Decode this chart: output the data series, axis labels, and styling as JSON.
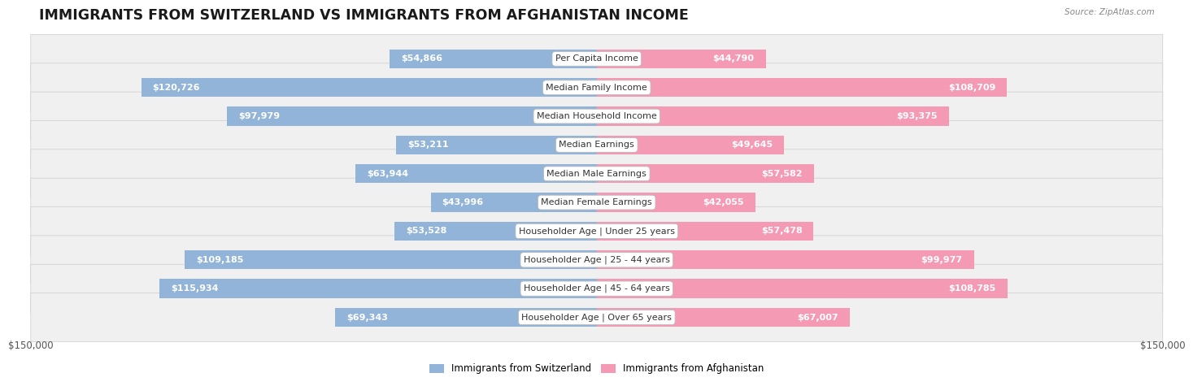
{
  "title": "IMMIGRANTS FROM SWITZERLAND VS IMMIGRANTS FROM AFGHANISTAN INCOME",
  "source": "Source: ZipAtlas.com",
  "categories": [
    "Per Capita Income",
    "Median Family Income",
    "Median Household Income",
    "Median Earnings",
    "Median Male Earnings",
    "Median Female Earnings",
    "Householder Age | Under 25 years",
    "Householder Age | 25 - 44 years",
    "Householder Age | 45 - 64 years",
    "Householder Age | Over 65 years"
  ],
  "switzerland_values": [
    54866,
    120726,
    97979,
    53211,
    63944,
    43996,
    53528,
    109185,
    115934,
    69343
  ],
  "afghanistan_values": [
    44790,
    108709,
    93375,
    49645,
    57582,
    42055,
    57478,
    99977,
    108785,
    67007
  ],
  "switzerland_labels": [
    "$54,866",
    "$120,726",
    "$97,979",
    "$53,211",
    "$63,944",
    "$43,996",
    "$53,528",
    "$109,185",
    "$115,934",
    "$69,343"
  ],
  "afghanistan_labels": [
    "$44,790",
    "$108,709",
    "$93,375",
    "$49,645",
    "$57,582",
    "$42,055",
    "$57,478",
    "$99,977",
    "$108,785",
    "$67,007"
  ],
  "switzerland_color": "#92b4d8",
  "afghanistan_color": "#f49ab5",
  "max_value": 150000,
  "legend_switzerland": "Immigrants from Switzerland",
  "legend_afghanistan": "Immigrants from Afghanistan",
  "row_bg_color": "#f0f0f0",
  "row_border_color": "#cccccc",
  "title_fontsize": 12.5,
  "label_fontsize": 8,
  "category_fontsize": 8,
  "axis_label_fontsize": 8.5,
  "label_threshold": 0.22
}
